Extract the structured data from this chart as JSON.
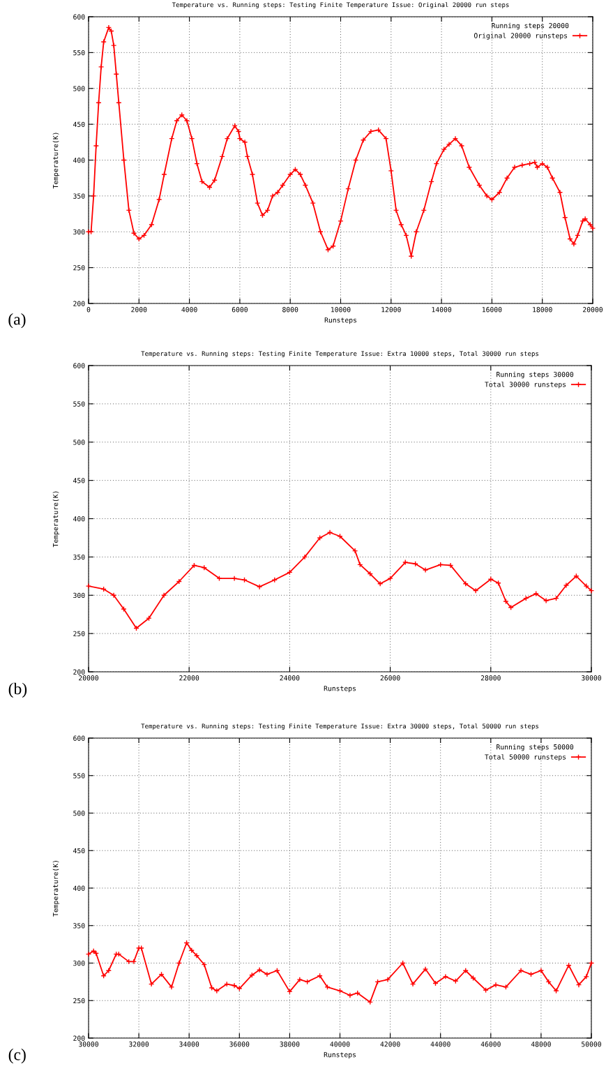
{
  "chart_data": [
    {
      "type": "line",
      "title": "Temperature vs. Running steps: Testing Finite Temperature Issue: Original 20000 run steps",
      "xlabel": "Runsteps",
      "ylabel": "Temperature(K)",
      "legend_title": "Running steps 20000",
      "annotations": [
        "(a)"
      ],
      "xlim": [
        0,
        20000
      ],
      "xticks": [
        0,
        2000,
        4000,
        6000,
        8000,
        10000,
        12000,
        14000,
        16000,
        18000,
        20000
      ],
      "ylim": [
        200,
        600
      ],
      "yticks": [
        200,
        250,
        300,
        350,
        400,
        450,
        500,
        550,
        600
      ],
      "grid": true,
      "legend": "top right",
      "marker": "cross",
      "line_style": "solid",
      "series": [
        {
          "name": "Original 20000 runsteps",
          "color": "#ff0000",
          "x": [
            0,
            100,
            200,
            300,
            400,
            500,
            600,
            800,
            900,
            1000,
            1100,
            1200,
            1400,
            1600,
            1800,
            2000,
            2200,
            2500,
            2800,
            3000,
            3300,
            3500,
            3700,
            3900,
            4100,
            4300,
            4500,
            4800,
            5000,
            5300,
            5500,
            5800,
            5950,
            6000,
            6200,
            6300,
            6500,
            6700,
            6900,
            7100,
            7300,
            7500,
            7700,
            8000,
            8200,
            8400,
            8600,
            8900,
            9200,
            9500,
            9700,
            10000,
            10300,
            10600,
            10900,
            11200,
            11500,
            11800,
            12000,
            12200,
            12400,
            12600,
            12800,
            13000,
            13300,
            13600,
            13800,
            14100,
            14300,
            14550,
            14800,
            15100,
            15500,
            15800,
            16000,
            16300,
            16600,
            16900,
            17200,
            17500,
            17700,
            17800,
            18000,
            18200,
            18400,
            18700,
            18900,
            19100,
            19250,
            19400,
            19600,
            19700,
            19900,
            20000
          ],
          "values": [
            300,
            300,
            350,
            420,
            480,
            530,
            565,
            585,
            580,
            560,
            520,
            480,
            400,
            330,
            298,
            290,
            295,
            310,
            345,
            380,
            430,
            455,
            463,
            455,
            430,
            395,
            370,
            362,
            372,
            405,
            430,
            448,
            440,
            430,
            425,
            405,
            380,
            340,
            323,
            330,
            350,
            355,
            365,
            380,
            387,
            380,
            365,
            340,
            300,
            275,
            280,
            315,
            360,
            400,
            428,
            440,
            442,
            430,
            385,
            330,
            310,
            295,
            266,
            300,
            330,
            370,
            395,
            415,
            422,
            430,
            420,
            390,
            365,
            350,
            345,
            355,
            375,
            390,
            393,
            395,
            397,
            390,
            395,
            390,
            375,
            355,
            320,
            290,
            283,
            295,
            315,
            318,
            310,
            305
          ]
        }
      ]
    },
    {
      "type": "line",
      "title": "Temperature vs. Running steps: Testing Finite Temperature Issue: Extra 10000 steps, Total 30000 run steps",
      "xlabel": "Runsteps",
      "ylabel": "Temperature(K)",
      "legend_title": "Running steps 30000",
      "annotations": [
        "(b)"
      ],
      "xlim": [
        20000,
        30000
      ],
      "xticks": [
        20000,
        22000,
        24000,
        26000,
        28000,
        30000
      ],
      "ylim": [
        200,
        600
      ],
      "yticks": [
        200,
        250,
        300,
        350,
        400,
        450,
        500,
        550,
        600
      ],
      "grid": true,
      "legend": "top right",
      "marker": "cross",
      "line_style": "solid",
      "series": [
        {
          "name": "Total 30000 runsteps",
          "color": "#ff0000",
          "x": [
            20000,
            20300,
            20500,
            20700,
            20950,
            21200,
            21500,
            21800,
            22100,
            22300,
            22600,
            22900,
            23100,
            23400,
            23700,
            24000,
            24300,
            24600,
            24800,
            25000,
            25300,
            25400,
            25600,
            25800,
            26000,
            26300,
            26500,
            26700,
            27000,
            27200,
            27500,
            27700,
            28000,
            28150,
            28300,
            28400,
            28700,
            28900,
            29100,
            29300,
            29500,
            29700,
            29900,
            30000
          ],
          "values": [
            312,
            308,
            300,
            282,
            257,
            270,
            300,
            318,
            339,
            336,
            322,
            322,
            320,
            311,
            320,
            330,
            350,
            375,
            382,
            377,
            358,
            340,
            328,
            315,
            322,
            343,
            341,
            333,
            340,
            339,
            315,
            306,
            321,
            316,
            292,
            284,
            296,
            302,
            293,
            296,
            313,
            325,
            312,
            306
          ]
        }
      ]
    },
    {
      "type": "line",
      "title": "Temperature vs. Running steps: Testing Finite Temperature Issue: Extra 30000 steps, Total 50000 run steps",
      "xlabel": "Runsteps",
      "ylabel": "Temperature(K)",
      "legend_title": "Running steps 50000",
      "annotations": [
        "(c)"
      ],
      "xlim": [
        30000,
        50000
      ],
      "xticks": [
        30000,
        32000,
        34000,
        36000,
        38000,
        40000,
        42000,
        44000,
        46000,
        48000,
        50000
      ],
      "ylim": [
        200,
        600
      ],
      "yticks": [
        200,
        250,
        300,
        350,
        400,
        450,
        500,
        550,
        600
      ],
      "grid": true,
      "legend": "top right",
      "marker": "cross",
      "line_style": "solid",
      "series": [
        {
          "name": "Total 50000 runsteps",
          "color": "#ff0000",
          "x": [
            30000,
            30200,
            30300,
            30600,
            30800,
            31100,
            31200,
            31600,
            31800,
            32000,
            32100,
            32500,
            32900,
            33300,
            33600,
            33900,
            34100,
            34300,
            34600,
            34900,
            35100,
            35500,
            35800,
            36000,
            36500,
            36800,
            37100,
            37500,
            38000,
            38400,
            38700,
            39200,
            39500,
            40000,
            40400,
            40700,
            41200,
            41500,
            41900,
            42500,
            42900,
            43400,
            43800,
            44200,
            44600,
            45000,
            45300,
            45800,
            46200,
            46600,
            47200,
            47600,
            48000,
            48300,
            48600,
            49100,
            49500,
            49800,
            50000
          ],
          "values": [
            312,
            316,
            313,
            283,
            290,
            312,
            312,
            302,
            302,
            320,
            320,
            272,
            285,
            268,
            300,
            327,
            317,
            310,
            298,
            267,
            263,
            272,
            270,
            266,
            284,
            291,
            285,
            290,
            262,
            278,
            275,
            283,
            268,
            263,
            257,
            260,
            248,
            275,
            278,
            300,
            272,
            292,
            273,
            282,
            276,
            290,
            280,
            264,
            271,
            268,
            290,
            285,
            290,
            275,
            263,
            297,
            271,
            282,
            300
          ]
        }
      ]
    }
  ]
}
